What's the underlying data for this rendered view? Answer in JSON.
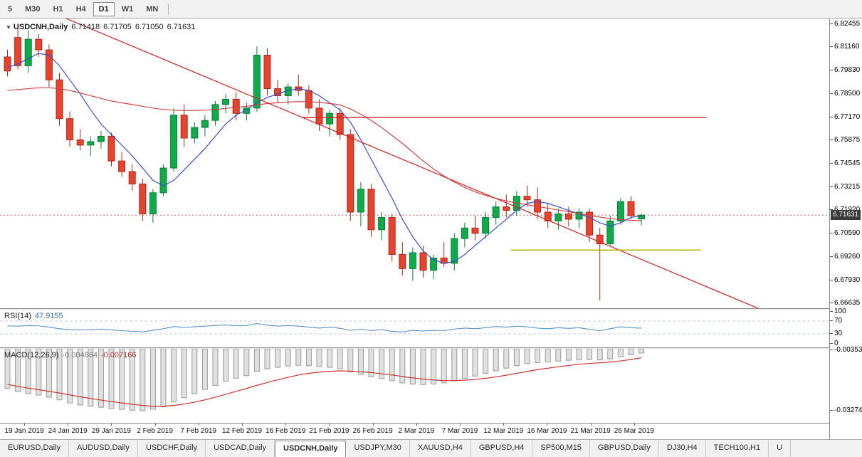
{
  "toolbar": {
    "timeframes": [
      "5",
      "M30",
      "H1",
      "H4",
      "D1",
      "W1",
      "MN"
    ],
    "active": "D1"
  },
  "chart": {
    "symbol_label": "USDCNH,Daily",
    "open": "6.71418",
    "high": "6.71705",
    "low": "6.71050",
    "close": "6.71631",
    "current_price": "6.71631",
    "price_scale": [
      "6.82455",
      "6.81160",
      "6.79830",
      "6.78500",
      "6.77170",
      "6.75875",
      "6.74545",
      "6.73215",
      "6.71920",
      "6.70590",
      "6.69260",
      "6.67930",
      "6.66635"
    ],
    "colors": {
      "bull": "#0fab4b",
      "bull_border": "#0b7d37",
      "bear": "#e8432e",
      "bear_border": "#a8291b",
      "ma_fast": "#3c50c8",
      "ma_slow": "#cc4444",
      "trend": "#cc2222",
      "hline": "#cc2222",
      "support": "#b4b400",
      "bid": "#d06060",
      "rsi": "#5b8fc9",
      "rsi_level": "#b9c9dd",
      "macd_signal": "#cc3333",
      "macd_bar": "#e0e0e0",
      "macd_bar_border": "#9a9a9a"
    }
  },
  "rsi_panel": {
    "label": "RSI(14)",
    "value": "47.9155",
    "scale": [
      "100",
      "70",
      "30",
      "0"
    ]
  },
  "macd_panel": {
    "label": "MACD(12,26,9)",
    "value_main": "-0.004864",
    "value_signal": "-0.007166",
    "scale": [
      "-0.00353",
      "-0.03274"
    ]
  },
  "x_axis": {
    "labels": [
      "19 Jan 2019",
      "24 Jan 2019",
      "29 Jan 2019",
      "2 Feb 2019",
      "7 Feb 2019",
      "12 Feb 2019",
      "16 Feb 2019",
      "21 Feb 2019",
      "26 Feb 2019",
      "2 Mar 2019",
      "7 Mar 2019",
      "12 Mar 2019",
      "16 Mar 2019",
      "21 Mar 2019",
      "26 Mar 2019"
    ]
  },
  "tabs": {
    "items": [
      {
        "label": "EURUSD,Daily"
      },
      {
        "label": "AUDUSD,Daily"
      },
      {
        "label": "USDCHF,Daily"
      },
      {
        "label": "USDCAD,Daily"
      },
      {
        "label": "USDCNH,Daily",
        "active": true
      },
      {
        "label": "USDJPY,M30"
      },
      {
        "label": "XAUUSD,H4"
      },
      {
        "label": "GBPUSD,H4"
      },
      {
        "label": "SP500,M15"
      },
      {
        "label": "GBPUSD,Daily"
      },
      {
        "label": "DJ30,H4"
      },
      {
        "label": "TECH100,H1"
      },
      {
        "label": "U"
      }
    ]
  },
  "chart_data": {
    "type": "candlestick",
    "title": "USDCNH,Daily",
    "ylim": [
      6.66635,
      6.82455
    ],
    "x_labels": [
      "19 Jan 2019",
      "24 Jan 2019",
      "29 Jan 2019",
      "2 Feb 2019",
      "7 Feb 2019",
      "12 Feb 2019",
      "16 Feb 2019",
      "21 Feb 2019",
      "26 Feb 2019",
      "2 Mar 2019",
      "7 Mar 2019",
      "12 Mar 2019",
      "16 Mar 2019",
      "21 Mar 2019",
      "26 Mar 2019"
    ],
    "candles": [
      [
        6.806,
        6.81,
        6.795,
        6.798
      ],
      [
        6.817,
        6.823,
        6.799,
        6.801
      ],
      [
        6.801,
        6.821,
        6.797,
        6.816
      ],
      [
        6.816,
        6.819,
        6.806,
        6.81
      ],
      [
        6.81,
        6.813,
        6.789,
        6.793
      ],
      [
        6.793,
        6.797,
        6.767,
        6.771
      ],
      [
        6.771,
        6.775,
        6.755,
        6.759
      ],
      [
        6.759,
        6.765,
        6.753,
        6.756
      ],
      [
        6.756,
        6.761,
        6.75,
        6.758
      ],
      [
        6.758,
        6.764,
        6.754,
        6.761
      ],
      [
        6.761,
        6.763,
        6.744,
        6.747
      ],
      [
        6.747,
        6.752,
        6.738,
        6.741
      ],
      [
        6.741,
        6.745,
        6.73,
        6.734
      ],
      [
        6.734,
        6.737,
        6.713,
        6.717
      ],
      [
        6.717,
        6.731,
        6.712,
        6.729
      ],
      [
        6.729,
        6.745,
        6.727,
        6.743
      ],
      [
        6.743,
        6.777,
        6.741,
        6.773
      ],
      [
        6.773,
        6.779,
        6.755,
        6.76
      ],
      [
        6.76,
        6.769,
        6.757,
        6.766
      ],
      [
        6.766,
        6.773,
        6.761,
        6.77
      ],
      [
        6.77,
        6.781,
        6.767,
        6.779
      ],
      [
        6.779,
        6.785,
        6.774,
        6.782
      ],
      [
        6.782,
        6.786,
        6.77,
        6.774
      ],
      [
        6.774,
        6.78,
        6.77,
        6.777
      ],
      [
        6.777,
        6.812,
        6.775,
        6.807
      ],
      [
        6.807,
        6.811,
        6.784,
        6.788
      ],
      [
        6.788,
        6.793,
        6.78,
        6.784
      ],
      [
        6.784,
        6.791,
        6.779,
        6.789
      ],
      [
        6.789,
        6.796,
        6.784,
        6.787
      ],
      [
        6.787,
        6.79,
        6.774,
        6.777
      ],
      [
        6.777,
        6.782,
        6.764,
        6.768
      ],
      [
        6.768,
        6.776,
        6.761,
        6.774
      ],
      [
        6.774,
        6.777,
        6.759,
        6.762
      ],
      [
        6.762,
        6.765,
        6.713,
        6.718
      ],
      [
        6.718,
        6.735,
        6.71,
        6.731
      ],
      [
        6.731,
        6.734,
        6.704,
        6.708
      ],
      [
        6.708,
        6.718,
        6.702,
        6.715
      ],
      [
        6.715,
        6.717,
        6.69,
        6.694
      ],
      [
        6.694,
        6.701,
        6.682,
        6.686
      ],
      [
        6.686,
        6.698,
        6.679,
        6.695
      ],
      [
        6.695,
        6.699,
        6.681,
        6.685
      ],
      [
        6.685,
        6.694,
        6.68,
        6.692
      ],
      [
        6.692,
        6.701,
        6.687,
        6.689
      ],
      [
        6.689,
        6.706,
        6.685,
        6.703
      ],
      [
        6.703,
        6.712,
        6.698,
        6.709
      ],
      [
        6.709,
        6.716,
        6.702,
        6.706
      ],
      [
        6.706,
        6.718,
        6.703,
        6.715
      ],
      [
        6.715,
        6.724,
        6.711,
        6.721
      ],
      [
        6.721,
        6.728,
        6.715,
        6.719
      ],
      [
        6.719,
        6.73,
        6.716,
        6.727
      ],
      [
        6.727,
        6.733,
        6.721,
        6.725
      ],
      [
        6.725,
        6.732,
        6.714,
        6.718
      ],
      [
        6.718,
        6.723,
        6.709,
        6.713
      ],
      [
        6.713,
        6.72,
        6.708,
        6.717
      ],
      [
        6.717,
        6.721,
        6.71,
        6.714
      ],
      [
        6.714,
        6.72,
        6.709,
        6.718
      ],
      [
        6.718,
        6.72,
        6.701,
        6.705
      ],
      [
        6.705,
        6.709,
        6.668,
        6.7
      ],
      [
        6.7,
        6.716,
        6.699,
        6.713
      ],
      [
        6.713,
        6.726,
        6.711,
        6.724
      ],
      [
        6.724,
        6.727,
        6.714,
        6.716
      ],
      [
        6.71418,
        6.71705,
        6.7105,
        6.71631
      ]
    ],
    "overlays": {
      "ma_fast": [
        6.8,
        6.802,
        6.805,
        6.808,
        6.807,
        6.801,
        6.793,
        6.785,
        6.776,
        6.768,
        6.762,
        6.756,
        6.75,
        6.743,
        6.736,
        6.733,
        6.736,
        6.742,
        6.748,
        6.754,
        6.761,
        6.768,
        6.773,
        6.776,
        6.78,
        6.783,
        6.785,
        6.787,
        6.788,
        6.787,
        6.784,
        6.78,
        6.776,
        6.769,
        6.759,
        6.748,
        6.737,
        6.726,
        6.714,
        6.704,
        6.696,
        6.691,
        6.689,
        6.69,
        6.694,
        6.699,
        6.704,
        6.709,
        6.714,
        6.719,
        6.723,
        6.724,
        6.723,
        6.721,
        6.719,
        6.717,
        6.715,
        6.712,
        6.71,
        6.712,
        6.715,
        6.716
      ],
      "ma_slow": [
        6.787,
        6.7875,
        6.788,
        6.7885,
        6.7885,
        6.788,
        6.787,
        6.7855,
        6.784,
        6.7825,
        6.781,
        6.78,
        6.779,
        6.778,
        6.777,
        6.7762,
        6.7758,
        6.7756,
        6.7756,
        6.7758,
        6.7762,
        6.7768,
        6.7774,
        6.778,
        6.7788,
        6.7796,
        6.78,
        6.7804,
        6.7806,
        6.7806,
        6.7802,
        6.7796,
        6.7788,
        6.7765,
        6.7735,
        6.77,
        6.766,
        6.7615,
        6.757,
        6.752,
        6.747,
        6.7425,
        6.7385,
        6.735,
        6.732,
        6.7295,
        6.7275,
        6.7258,
        6.7244,
        6.7232,
        6.7222,
        6.7212,
        6.7202,
        6.7192,
        6.7182,
        6.7172,
        6.7162,
        6.7152,
        6.7144,
        6.7138,
        6.7134,
        6.7132
      ]
    },
    "objects": {
      "trendline": {
        "price_at_left": 6.8435,
        "price_at_right": 6.6466
      },
      "hline_red": {
        "price": 6.7717,
        "x_from_frac": 0.365,
        "x_to_frac": 0.852
      },
      "hline_olive": {
        "price": 6.6965,
        "x_from_frac": 0.616,
        "x_to_frac": 0.845
      },
      "bid_line": 6.71631
    },
    "rsi": {
      "period": 14,
      "current": 47.9155,
      "range": [
        0,
        100
      ],
      "levels": [
        70,
        30
      ],
      "values": [
        55,
        54,
        56,
        55,
        51,
        46,
        43,
        42,
        43,
        45,
        42,
        40,
        38,
        36,
        41,
        46,
        53,
        50,
        52,
        54,
        56,
        58,
        55,
        56,
        62,
        57,
        54,
        56,
        54,
        51,
        48,
        51,
        47,
        41,
        45,
        40,
        43,
        38,
        36,
        41,
        39,
        41,
        40,
        45,
        48,
        46,
        49,
        53,
        51,
        54,
        52,
        48,
        46,
        49,
        47,
        49,
        44,
        40,
        46,
        52,
        49,
        47.9155
      ]
    },
    "macd": {
      "params": "12,26,9",
      "main_current": -0.004864,
      "signal_current": -0.007166,
      "scale_top": -0.00353,
      "scale_bottom": -0.03274,
      "values": [
        -0.022,
        -0.0235,
        -0.0245,
        -0.0252,
        -0.0262,
        -0.0275,
        -0.029,
        -0.03,
        -0.0306,
        -0.0311,
        -0.0316,
        -0.0321,
        -0.0325,
        -0.0327,
        -0.032,
        -0.0308,
        -0.0285,
        -0.0265,
        -0.0245,
        -0.0225,
        -0.0205,
        -0.0185,
        -0.017,
        -0.0158,
        -0.0138,
        -0.0125,
        -0.0118,
        -0.0112,
        -0.0108,
        -0.011,
        -0.0115,
        -0.0118,
        -0.0125,
        -0.014,
        -0.0152,
        -0.0163,
        -0.0172,
        -0.0183,
        -0.0193,
        -0.0199,
        -0.0201,
        -0.0199,
        -0.0193,
        -0.0183,
        -0.0171,
        -0.016,
        -0.0148,
        -0.0135,
        -0.0122,
        -0.011,
        -0.01,
        -0.0095,
        -0.0092,
        -0.0088,
        -0.0084,
        -0.0081,
        -0.008,
        -0.0082,
        -0.0077,
        -0.0067,
        -0.0057,
        -0.004864
      ],
      "signal": [
        -0.02,
        -0.021,
        -0.0218,
        -0.0226,
        -0.0234,
        -0.0242,
        -0.0251,
        -0.026,
        -0.0268,
        -0.0276,
        -0.0283,
        -0.029,
        -0.0296,
        -0.0302,
        -0.0306,
        -0.0306,
        -0.0302,
        -0.0295,
        -0.0286,
        -0.0275,
        -0.0262,
        -0.0248,
        -0.0234,
        -0.022,
        -0.0205,
        -0.0191,
        -0.0178,
        -0.0166,
        -0.0155,
        -0.0147,
        -0.0141,
        -0.0137,
        -0.0135,
        -0.0136,
        -0.0139,
        -0.0143,
        -0.0149,
        -0.0155,
        -0.0162,
        -0.0169,
        -0.0175,
        -0.0179,
        -0.0182,
        -0.0182,
        -0.018,
        -0.0176,
        -0.0171,
        -0.0164,
        -0.0156,
        -0.0147,
        -0.0138,
        -0.0129,
        -0.0122,
        -0.0115,
        -0.0109,
        -0.0103,
        -0.0099,
        -0.0096,
        -0.0092,
        -0.0087,
        -0.008,
        -0.007166
      ]
    }
  }
}
